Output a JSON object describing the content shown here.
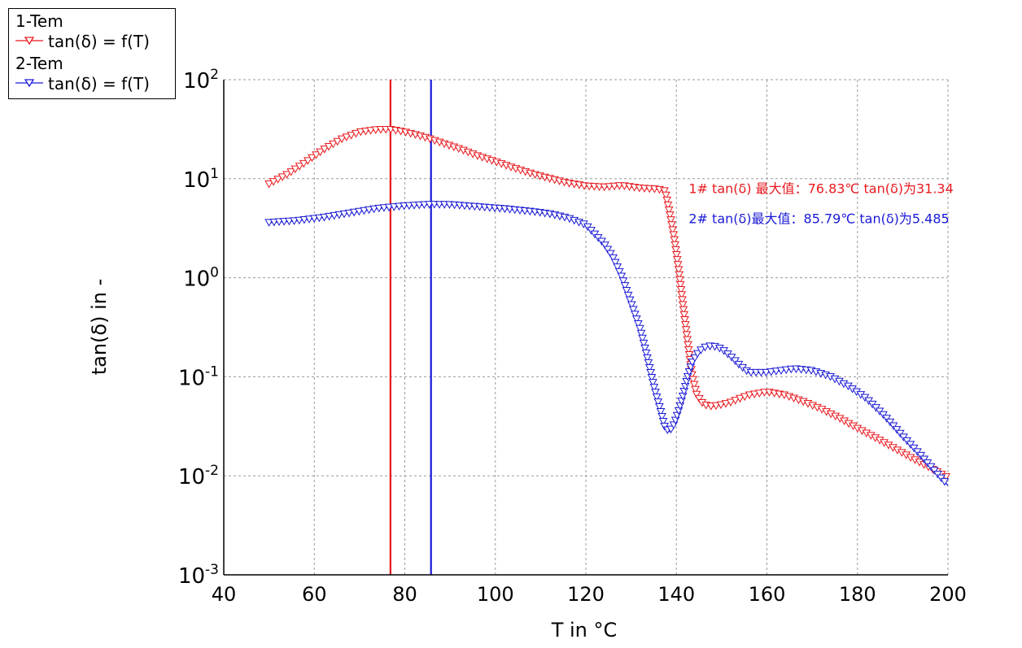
{
  "chart_data": {
    "type": "line",
    "xlabel": "T in °C",
    "ylabel": "tan(δ) in -",
    "xlim": [
      40,
      200
    ],
    "ylim": [
      0.001,
      100
    ],
    "y_scale": "log",
    "x_ticks": [
      40,
      60,
      80,
      100,
      120,
      140,
      160,
      180,
      200
    ],
    "y_ticks": [
      {
        "value": 0.001,
        "exp": "-3"
      },
      {
        "value": 0.01,
        "exp": "-2"
      },
      {
        "value": 0.1,
        "exp": "-1"
      },
      {
        "value": 1,
        "exp": "0"
      },
      {
        "value": 10,
        "exp": "1"
      },
      {
        "value": 100,
        "exp": "2"
      }
    ],
    "grid": true,
    "legend_position": "top-left",
    "series": [
      {
        "name": "tan(δ) = f(T)",
        "group": "1-Tem",
        "color": "#e8191e",
        "marker": "triangle-down",
        "x": [
          50,
          54,
          58,
          62,
          66,
          70,
          74,
          76.83,
          80,
          84,
          88,
          92,
          96,
          100,
          104,
          108,
          112,
          116,
          120,
          124,
          128,
          132,
          136,
          137.5,
          138.5,
          139.5,
          140.5,
          141.5,
          142.5,
          143.5,
          144.5,
          146,
          148,
          150,
          152,
          154,
          156,
          160,
          164,
          168,
          172,
          176,
          180,
          184,
          188,
          192,
          196,
          200
        ],
        "y": [
          8.8,
          11,
          14.5,
          19.5,
          25,
          29.5,
          31.2,
          31.34,
          29.5,
          26.5,
          23,
          20,
          17,
          14.8,
          12.8,
          11.2,
          10,
          9,
          8.4,
          8.2,
          8.5,
          8.0,
          7.8,
          7.5,
          4.5,
          2.5,
          1.2,
          0.5,
          0.22,
          0.1,
          0.065,
          0.052,
          0.05,
          0.052,
          0.055,
          0.06,
          0.065,
          0.07,
          0.065,
          0.056,
          0.047,
          0.038,
          0.03,
          0.024,
          0.019,
          0.015,
          0.012,
          0.0095
        ]
      },
      {
        "name": "tan(δ) = f(T)",
        "group": "2-Tem",
        "color": "#1a1ad6",
        "marker": "triangle-down",
        "x": [
          50,
          56,
          62,
          68,
          74,
          80,
          85.79,
          90,
          96,
          102,
          108,
          112,
          116,
          120,
          124,
          126,
          128,
          130,
          132,
          133.5,
          135,
          136.5,
          137.5,
          138.5,
          139.5,
          140.5,
          141.5,
          142.5,
          143.5,
          145,
          146.5,
          148,
          150,
          152,
          154,
          156,
          160,
          166,
          170,
          174,
          178,
          182,
          186,
          190,
          194,
          198,
          200
        ],
        "y": [
          3.6,
          3.75,
          4.05,
          4.5,
          5.0,
          5.3,
          5.485,
          5.45,
          5.2,
          4.95,
          4.65,
          4.4,
          4.0,
          3.4,
          2.2,
          1.6,
          1.0,
          0.55,
          0.3,
          0.16,
          0.08,
          0.045,
          0.03,
          0.028,
          0.033,
          0.045,
          0.065,
          0.1,
          0.14,
          0.18,
          0.2,
          0.205,
          0.19,
          0.16,
          0.13,
          0.11,
          0.11,
          0.12,
          0.115,
          0.1,
          0.08,
          0.06,
          0.04,
          0.025,
          0.016,
          0.01,
          0.008
        ]
      }
    ],
    "vlines": [
      {
        "x": 76.83,
        "color": "#e8191e"
      },
      {
        "x": 85.79,
        "color": "#1a1ad6"
      }
    ],
    "annotations": [
      {
        "text": "1# tan(δ) 最大值：76.83℃  tan(δ)为31.34",
        "color": "#e8191e",
        "x": 142,
        "y": 8.0
      },
      {
        "text": "2# tan(δ)最大值：85.79℃ tan(δ)为5.485",
        "color": "#1a1ad6",
        "x": 142,
        "y": 4.0
      }
    ]
  },
  "legend": {
    "group1": "1-Tem",
    "entry1": "tan(δ) = f(T)",
    "group2": "2-Tem",
    "entry2": "tan(δ) = f(T)",
    "color1": "#e8191e",
    "color2": "#1a1ad6"
  }
}
